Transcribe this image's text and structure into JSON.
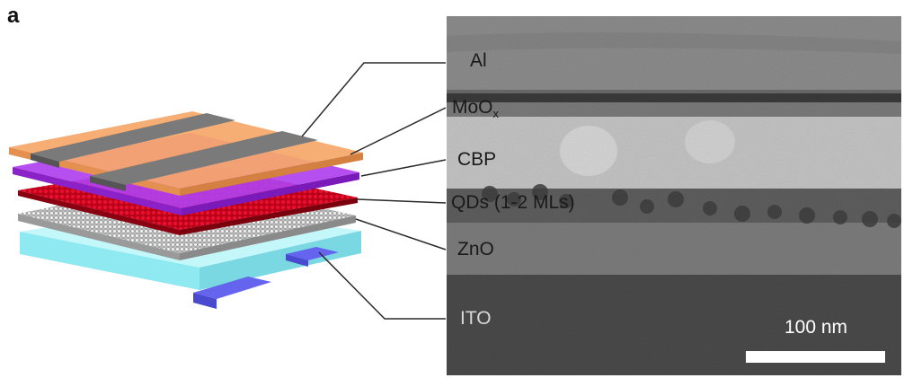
{
  "figure": {
    "panel_letter": "a"
  },
  "layers": [
    {
      "name": "Al",
      "sub": "",
      "suffix": ""
    },
    {
      "name": "MoO",
      "sub": "x",
      "suffix": ""
    },
    {
      "name": "CBP",
      "sub": "",
      "suffix": ""
    },
    {
      "name": "QDs (1-2 MLs)",
      "sub": "",
      "suffix": ""
    },
    {
      "name": "ZnO",
      "sub": "",
      "suffix": ""
    },
    {
      "name": "ITO",
      "sub": "",
      "suffix": ""
    }
  ],
  "scale_bar": {
    "label": "100 nm",
    "length_nm": 100
  },
  "colors": {
    "al_electrode": "#7a7a7a",
    "moox": "#f2b26a",
    "cbp": "#b040ee",
    "qds": "#c8001e",
    "zno": "#cfcfcf",
    "ito_electrode": "#6464ee",
    "substrate": "#9ff0f4"
  }
}
